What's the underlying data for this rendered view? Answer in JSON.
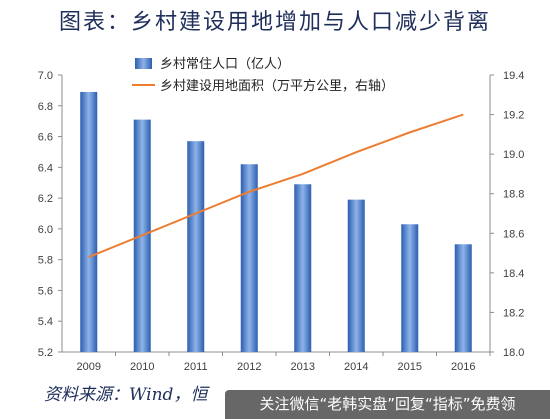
{
  "title": "图表：乡村建设用地增加与人口减少背离",
  "source": "资料来源：Wind，恒",
  "watermark": "关注微信“老韩实盘”回复“指标”免费领",
  "colors": {
    "bar": "#4a7fcf",
    "line": "#ed7d31",
    "title": "#1f2f5c"
  },
  "chart_data": {
    "type": "bar",
    "categories": [
      "2009",
      "2010",
      "2011",
      "2012",
      "2013",
      "2014",
      "2015",
      "2016"
    ],
    "series": [
      {
        "name": "乡村常住人口（亿人）",
        "type": "bar",
        "axis": "left",
        "values": [
          6.89,
          6.71,
          6.57,
          6.42,
          6.29,
          6.19,
          6.03,
          5.9
        ]
      },
      {
        "name": "乡村建设用地面积（万平方公里，右轴）",
        "type": "line",
        "axis": "right",
        "values": [
          18.48,
          18.59,
          18.7,
          18.81,
          18.9,
          19.01,
          19.11,
          19.2
        ]
      }
    ],
    "y_left": {
      "ylim": [
        5.2,
        7.0
      ],
      "ticks": [
        "5.2",
        "5.4",
        "5.6",
        "5.8",
        "6.0",
        "6.2",
        "6.4",
        "6.6",
        "6.8",
        "7.0"
      ]
    },
    "y_right": {
      "ylim": [
        18.0,
        19.4
      ],
      "ticks": [
        "18.0",
        "18.2",
        "18.4",
        "18.6",
        "18.8",
        "19.0",
        "19.2",
        "19.4"
      ]
    },
    "legend_position": "top-center",
    "grid": false
  }
}
